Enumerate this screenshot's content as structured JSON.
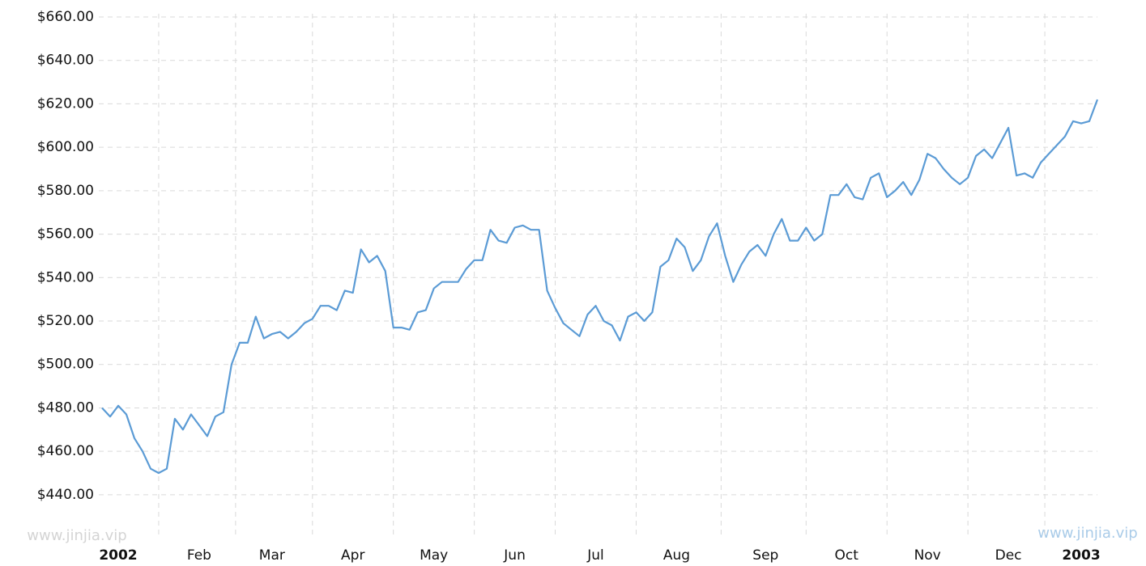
{
  "chart_data": {
    "type": "line",
    "categories": [
      null,
      null,
      "2002",
      null,
      null,
      null,
      null,
      null,
      null,
      null,
      null,
      null,
      "Feb",
      null,
      null,
      null,
      null,
      null,
      null,
      null,
      null,
      "Mar",
      null,
      null,
      null,
      null,
      null,
      null,
      null,
      null,
      null,
      "Apr",
      null,
      null,
      null,
      null,
      null,
      null,
      null,
      null,
      null,
      "May",
      null,
      null,
      null,
      null,
      null,
      null,
      null,
      null,
      null,
      "Jun",
      null,
      null,
      null,
      null,
      null,
      null,
      null,
      null,
      null,
      "Jul",
      null,
      null,
      null,
      null,
      null,
      null,
      null,
      null,
      null,
      "Aug",
      null,
      null,
      null,
      null,
      null,
      null,
      null,
      null,
      null,
      null,
      "Sep",
      null,
      null,
      null,
      null,
      null,
      null,
      null,
      null,
      null,
      "Oct",
      null,
      null,
      null,
      null,
      null,
      null,
      null,
      null,
      null,
      "Nov",
      null,
      null,
      null,
      null,
      null,
      null,
      null,
      null,
      null,
      "Dec",
      null,
      null,
      null,
      null,
      null,
      null,
      null,
      null,
      "2003",
      null,
      null
    ],
    "values": [
      480,
      476,
      481,
      477,
      466,
      460,
      452,
      450,
      452,
      475,
      470,
      477,
      472,
      467,
      476,
      478,
      500,
      510,
      510,
      522,
      512,
      514,
      515,
      512,
      515,
      519,
      521,
      527,
      527,
      525,
      534,
      533,
      553,
      547,
      550,
      543,
      517,
      517,
      516,
      524,
      525,
      535,
      538,
      538,
      538,
      544,
      548,
      548,
      562,
      557,
      556,
      563,
      564,
      562,
      562,
      534,
      526,
      519,
      516,
      513,
      523,
      527,
      520,
      518,
      511,
      522,
      524,
      520,
      524,
      545,
      548,
      558,
      554,
      543,
      548,
      559,
      565,
      550,
      538,
      546,
      552,
      555,
      550,
      560,
      567,
      557,
      557,
      563,
      557,
      560,
      578,
      578,
      583,
      577,
      576,
      586,
      588,
      577,
      580,
      584,
      578,
      585,
      597,
      595,
      590,
      586,
      583,
      586,
      596,
      599,
      595,
      602,
      609,
      587,
      588,
      586,
      593,
      597,
      601,
      605,
      612,
      611,
      612,
      622
    ],
    "color": "#5b9bd5",
    "ylim": [
      420,
      660
    ],
    "yticks": [
      {
        "value": 440,
        "label": "$440.00"
      },
      {
        "value": 460,
        "label": "$460.00"
      },
      {
        "value": 480,
        "label": "$480.00"
      },
      {
        "value": 500,
        "label": "$500.00"
      },
      {
        "value": 520,
        "label": "$520.00"
      },
      {
        "value": 540,
        "label": "$540.00"
      },
      {
        "value": 560,
        "label": "$560.00"
      },
      {
        "value": 580,
        "label": "$580.00"
      },
      {
        "value": 600,
        "label": "$600.00"
      },
      {
        "value": 620,
        "label": "$620.00"
      },
      {
        "value": 640,
        "label": "$640.00"
      },
      {
        "value": 660,
        "label": "$660.00"
      }
    ],
    "grid": true,
    "watermarks": [
      "www.jinjia.vip",
      "www.jinjia.vip"
    ]
  }
}
